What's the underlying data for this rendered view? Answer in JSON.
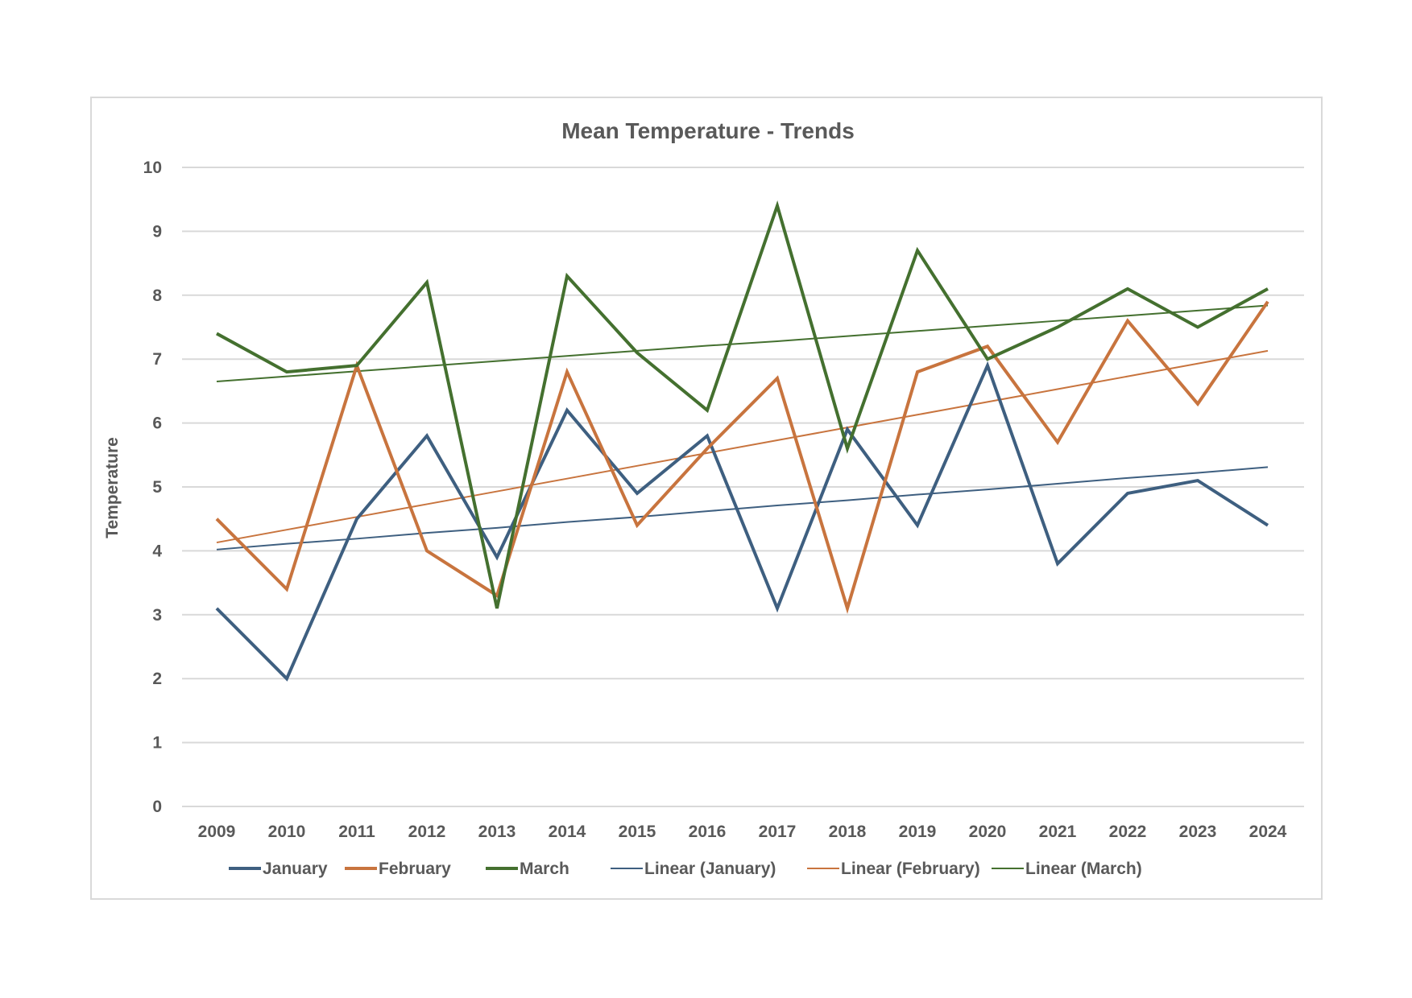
{
  "chart_data": {
    "type": "line",
    "title": "Mean Temperature - Trends",
    "xlabel": "",
    "ylabel": "Temperature",
    "ylim": [
      0,
      10
    ],
    "yticks": [
      "0",
      "1",
      "2",
      "3",
      "4",
      "5",
      "6",
      "7",
      "8",
      "9",
      "10"
    ],
    "categories": [
      "2009",
      "2010",
      "2011",
      "2012",
      "2013",
      "2014",
      "2015",
      "2016",
      "2017",
      "2018",
      "2019",
      "2020",
      "2021",
      "2022",
      "2023",
      "2024"
    ],
    "grid": true,
    "legend_position": "bottom",
    "series": [
      {
        "name": "January",
        "color": "#3e5f80",
        "style": "solid",
        "width": "thick",
        "values": [
          3.1,
          2.0,
          4.5,
          5.8,
          3.9,
          6.2,
          4.9,
          5.8,
          3.1,
          5.9,
          4.4,
          6.9,
          3.8,
          4.9,
          5.1,
          4.4
        ]
      },
      {
        "name": "February",
        "color": "#c8743e",
        "style": "solid",
        "width": "thick",
        "values": [
          4.5,
          3.4,
          6.9,
          4.0,
          3.3,
          6.8,
          4.4,
          5.6,
          6.7,
          3.1,
          6.8,
          7.2,
          5.7,
          7.6,
          6.3,
          7.9
        ]
      },
      {
        "name": "March",
        "color": "#44702f",
        "style": "solid",
        "width": "thick",
        "values": [
          7.4,
          6.8,
          6.9,
          8.2,
          3.1,
          8.3,
          7.1,
          6.2,
          9.4,
          5.6,
          8.7,
          7.0,
          7.5,
          8.1,
          7.5,
          8.1
        ]
      },
      {
        "name": "Linear (January)",
        "color": "#3e5f80",
        "style": "trendline",
        "width": "thin",
        "values": [
          4.02,
          4.11,
          4.19,
          4.28,
          4.36,
          4.45,
          4.53,
          4.62,
          4.71,
          4.79,
          4.88,
          4.96,
          5.05,
          5.14,
          5.22,
          5.31
        ]
      },
      {
        "name": "Linear (February)",
        "color": "#c8743e",
        "style": "trendline",
        "width": "thin",
        "values": [
          4.13,
          4.33,
          4.53,
          4.73,
          4.93,
          5.13,
          5.33,
          5.53,
          5.73,
          5.93,
          6.13,
          6.33,
          6.53,
          6.73,
          6.93,
          7.13
        ]
      },
      {
        "name": "Linear (March)",
        "color": "#44702f",
        "style": "trendline",
        "width": "thin",
        "values": [
          6.65,
          6.73,
          6.81,
          6.89,
          6.97,
          7.05,
          7.13,
          7.21,
          7.28,
          7.36,
          7.44,
          7.52,
          7.6,
          7.68,
          7.76,
          7.84
        ]
      }
    ]
  }
}
